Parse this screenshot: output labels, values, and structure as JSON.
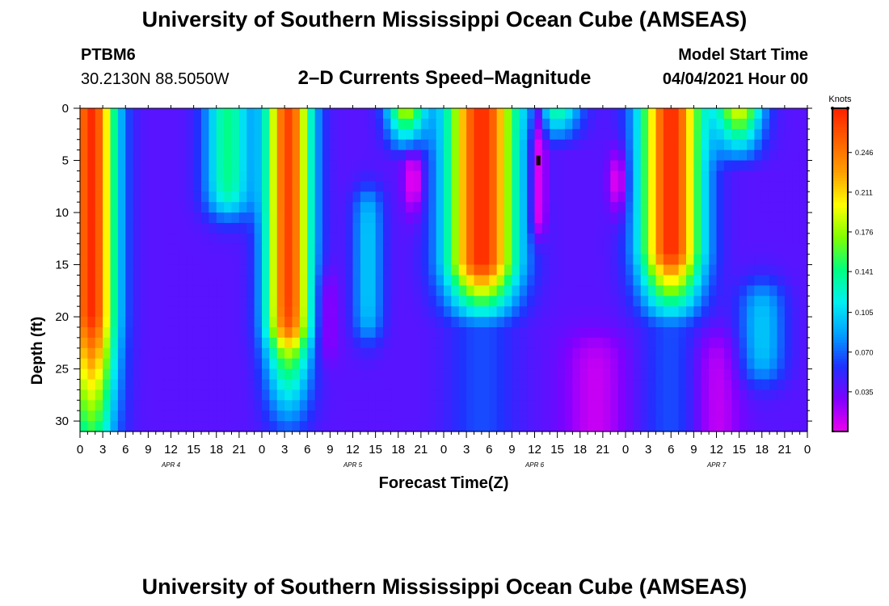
{
  "header": {
    "title_top": "University of Southern Mississippi Ocean Cube (AMSEAS)",
    "station": "PTBM6",
    "coords": "30.2130N  88.5050W",
    "subtitle": "2–D Currents Speed–Magnitude",
    "model_label": "Model Start Time",
    "model_start": "04/04/2021 Hour 00",
    "title_bottom": "University of Southern Mississippi Ocean Cube (AMSEAS)"
  },
  "chart_data": {
    "type": "heatmap",
    "title": "2–D Currents Speed–Magnitude",
    "xlabel": "Forecast Time(Z)",
    "ylabel": "Depth (ft)",
    "x_ticks": [
      "0",
      "3",
      "6",
      "9",
      "12",
      "15",
      "18",
      "21",
      "0",
      "3",
      "6",
      "9",
      "12",
      "15",
      "18",
      "21",
      "0",
      "3",
      "6",
      "9",
      "12",
      "15",
      "18",
      "21",
      "0",
      "3",
      "6",
      "9",
      "12",
      "15",
      "18",
      "21",
      "0"
    ],
    "x_hours_range": [
      0,
      96
    ],
    "date_labels": [
      {
        "text": "APR 4",
        "hour": 12
      },
      {
        "text": "APR 5",
        "hour": 36
      },
      {
        "text": "APR 6",
        "hour": 60
      },
      {
        "text": "APR 7",
        "hour": 84
      }
    ],
    "y_ticks": [
      0,
      5,
      10,
      15,
      20,
      25,
      30
    ],
    "ylim": [
      0,
      31
    ],
    "y_inverted": true,
    "colorbar": {
      "unit": "Knots",
      "tick_values": [
        "0.246",
        "0.211",
        "0.176",
        "0.141",
        "0.105",
        "0.070",
        "0.035"
      ],
      "range": [
        0.0,
        0.285
      ],
      "colors": [
        "#ee00ee",
        "#8000ff",
        "#2030ff",
        "#00a0ff",
        "#00f0f0",
        "#00ff80",
        "#80ff00",
        "#ffff00",
        "#ffa000",
        "#ff6000",
        "#ff2000"
      ]
    },
    "marker": {
      "hour": 60.5,
      "depth_ft": 5
    }
  }
}
